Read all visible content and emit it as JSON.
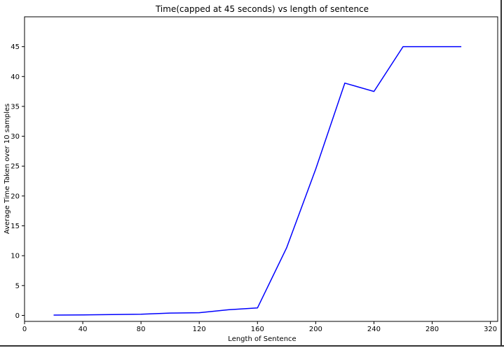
{
  "chart_data": {
    "type": "line",
    "title": "Time(capped at 45 seconds) vs length of sentence",
    "xlabel": "Length of Sentence",
    "ylabel": "Average Time Taken over 10 samples",
    "xlim": [
      0,
      325
    ],
    "ylim": [
      -1,
      50
    ],
    "xticks": [
      0,
      40,
      80,
      120,
      160,
      200,
      240,
      280,
      320
    ],
    "yticks": [
      0,
      5,
      10,
      15,
      20,
      25,
      30,
      35,
      40,
      45
    ],
    "grid": false,
    "series": [
      {
        "color": "#0000ff",
        "x": [
          20,
          40,
          60,
          80,
          100,
          120,
          140,
          160,
          180,
          200,
          220,
          240,
          260,
          280,
          300
        ],
        "y": [
          0.05,
          0.08,
          0.15,
          0.2,
          0.4,
          0.45,
          0.95,
          1.25,
          11.3,
          24.5,
          38.9,
          37.5,
          45,
          45,
          45
        ]
      }
    ]
  }
}
